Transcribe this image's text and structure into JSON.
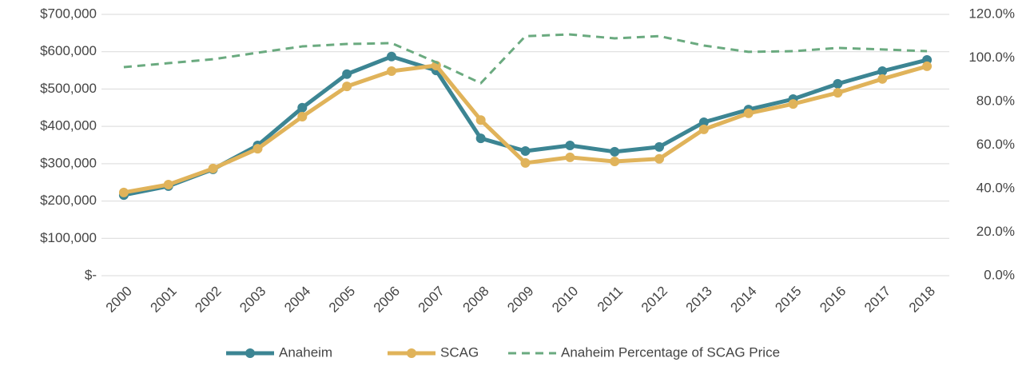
{
  "chart_data": {
    "type": "line",
    "categories": [
      "2000",
      "2001",
      "2002",
      "2003",
      "2004",
      "2005",
      "2006",
      "2007",
      "2008",
      "2009",
      "2010",
      "2011",
      "2012",
      "2013",
      "2014",
      "2015",
      "2016",
      "2017",
      "2018"
    ],
    "series": [
      {
        "name": "Anaheim",
        "color": "#3c8593",
        "values": [
          216000,
          240000,
          285000,
          349000,
          450000,
          540000,
          587000,
          550000,
          368000,
          334000,
          349000,
          332000,
          345000,
          411000,
          445000,
          473000,
          514000,
          548000,
          578000
        ]
      },
      {
        "name": "SCAG",
        "color": "#e0b35a",
        "values": [
          223000,
          244000,
          287000,
          340000,
          426000,
          507000,
          548000,
          563000,
          417000,
          302000,
          317000,
          306000,
          313000,
          392000,
          435000,
          460000,
          490000,
          527000,
          561000
        ]
      },
      {
        "name": "Anaheim Percentage of SCAG Price",
        "color": "#6aaa7f",
        "axis": "y2",
        "dashed": true,
        "values": [
          95.8,
          97.6,
          99.4,
          102.4,
          105.3,
          106.4,
          106.8,
          98,
          88.4,
          110,
          110.8,
          109,
          110,
          105.7,
          102.8,
          103.1,
          104.6,
          103.9,
          103.1
        ]
      }
    ],
    "ylim": [
      0,
      700000
    ],
    "yticks": [
      {
        "value": 0,
        "label": "$-"
      },
      {
        "value": 100000,
        "label": "$100,000"
      },
      {
        "value": 200000,
        "label": "$200,000"
      },
      {
        "value": 300000,
        "label": "$300,000"
      },
      {
        "value": 400000,
        "label": "$400,000"
      },
      {
        "value": 500000,
        "label": "$500,000"
      },
      {
        "value": 600000,
        "label": "$600,000"
      },
      {
        "value": 700000,
        "label": "$700,000"
      }
    ],
    "y2lim": [
      0,
      120
    ],
    "y2ticks": [
      {
        "value": 0,
        "label": "0.0%"
      },
      {
        "value": 20,
        "label": "20.0%"
      },
      {
        "value": 40,
        "label": "40.0%"
      },
      {
        "value": 60,
        "label": "60.0%"
      },
      {
        "value": 80,
        "label": "80.0%"
      },
      {
        "value": 100,
        "label": "100.0%"
      },
      {
        "value": 120,
        "label": "120.0%"
      }
    ],
    "grid": true,
    "legend": "bottom"
  }
}
